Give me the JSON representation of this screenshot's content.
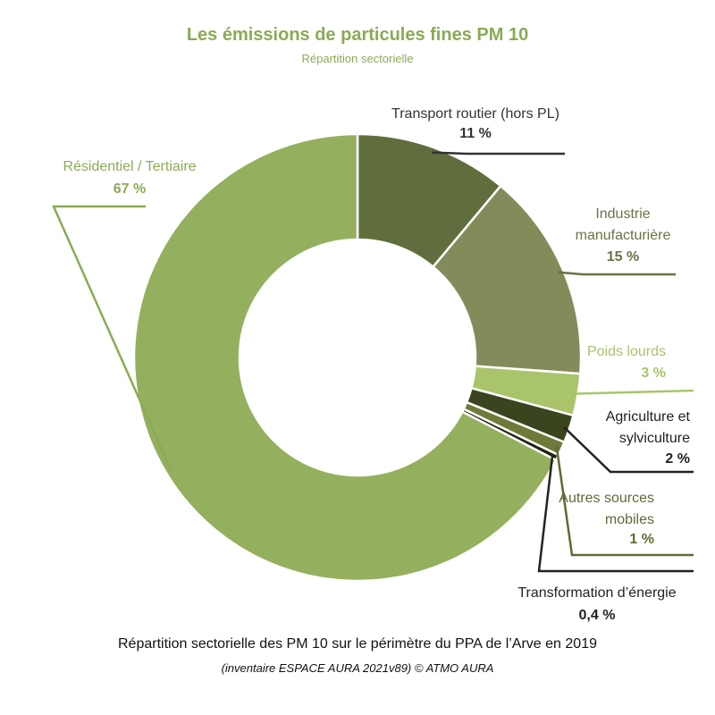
{
  "chart_data": {
    "type": "pie",
    "title": "Les émissions de particules fines PM 10",
    "subtitle": "Répartition sectorielle",
    "caption": "Répartition sectorielle des PM 10 sur le périmètre du PPA de l’Arve en 2019",
    "source": "(inventaire ESPACE AURA 2021v89) © ATMO AURA",
    "donut": true,
    "slices": [
      {
        "name": "Transport routier (hors PL)",
        "value": 11,
        "label": "11 %",
        "color": "#5f6e3c",
        "label_color": "#333333"
      },
      {
        "name": "Industrie manufacturière",
        "value": 15,
        "label": "15 %",
        "color": "#848b5a",
        "label_color": "#6b7245"
      },
      {
        "name": "Poids lourds",
        "value": 3,
        "label": "3 %",
        "color": "#a9c46b",
        "label_color": "#a9c46b"
      },
      {
        "name": "Agriculture et sylviculture",
        "value": 2,
        "label": "2 %",
        "color": "#3a4520",
        "label_color": "#222222"
      },
      {
        "name": "Autres sources mobiles",
        "value": 1,
        "label": "1 %",
        "color": "#6e7a3a",
        "label_color": "#5f6a35"
      },
      {
        "name": "Transformation d’énergie",
        "value": 0.4,
        "label": "0,4 %",
        "color": "#1f2412",
        "label_color": "#222222"
      },
      {
        "name": "Résidentiel / Tertiaire",
        "value": 67,
        "label": "67 %",
        "color": "#94b05e",
        "label_color": "#8aab55"
      }
    ]
  }
}
